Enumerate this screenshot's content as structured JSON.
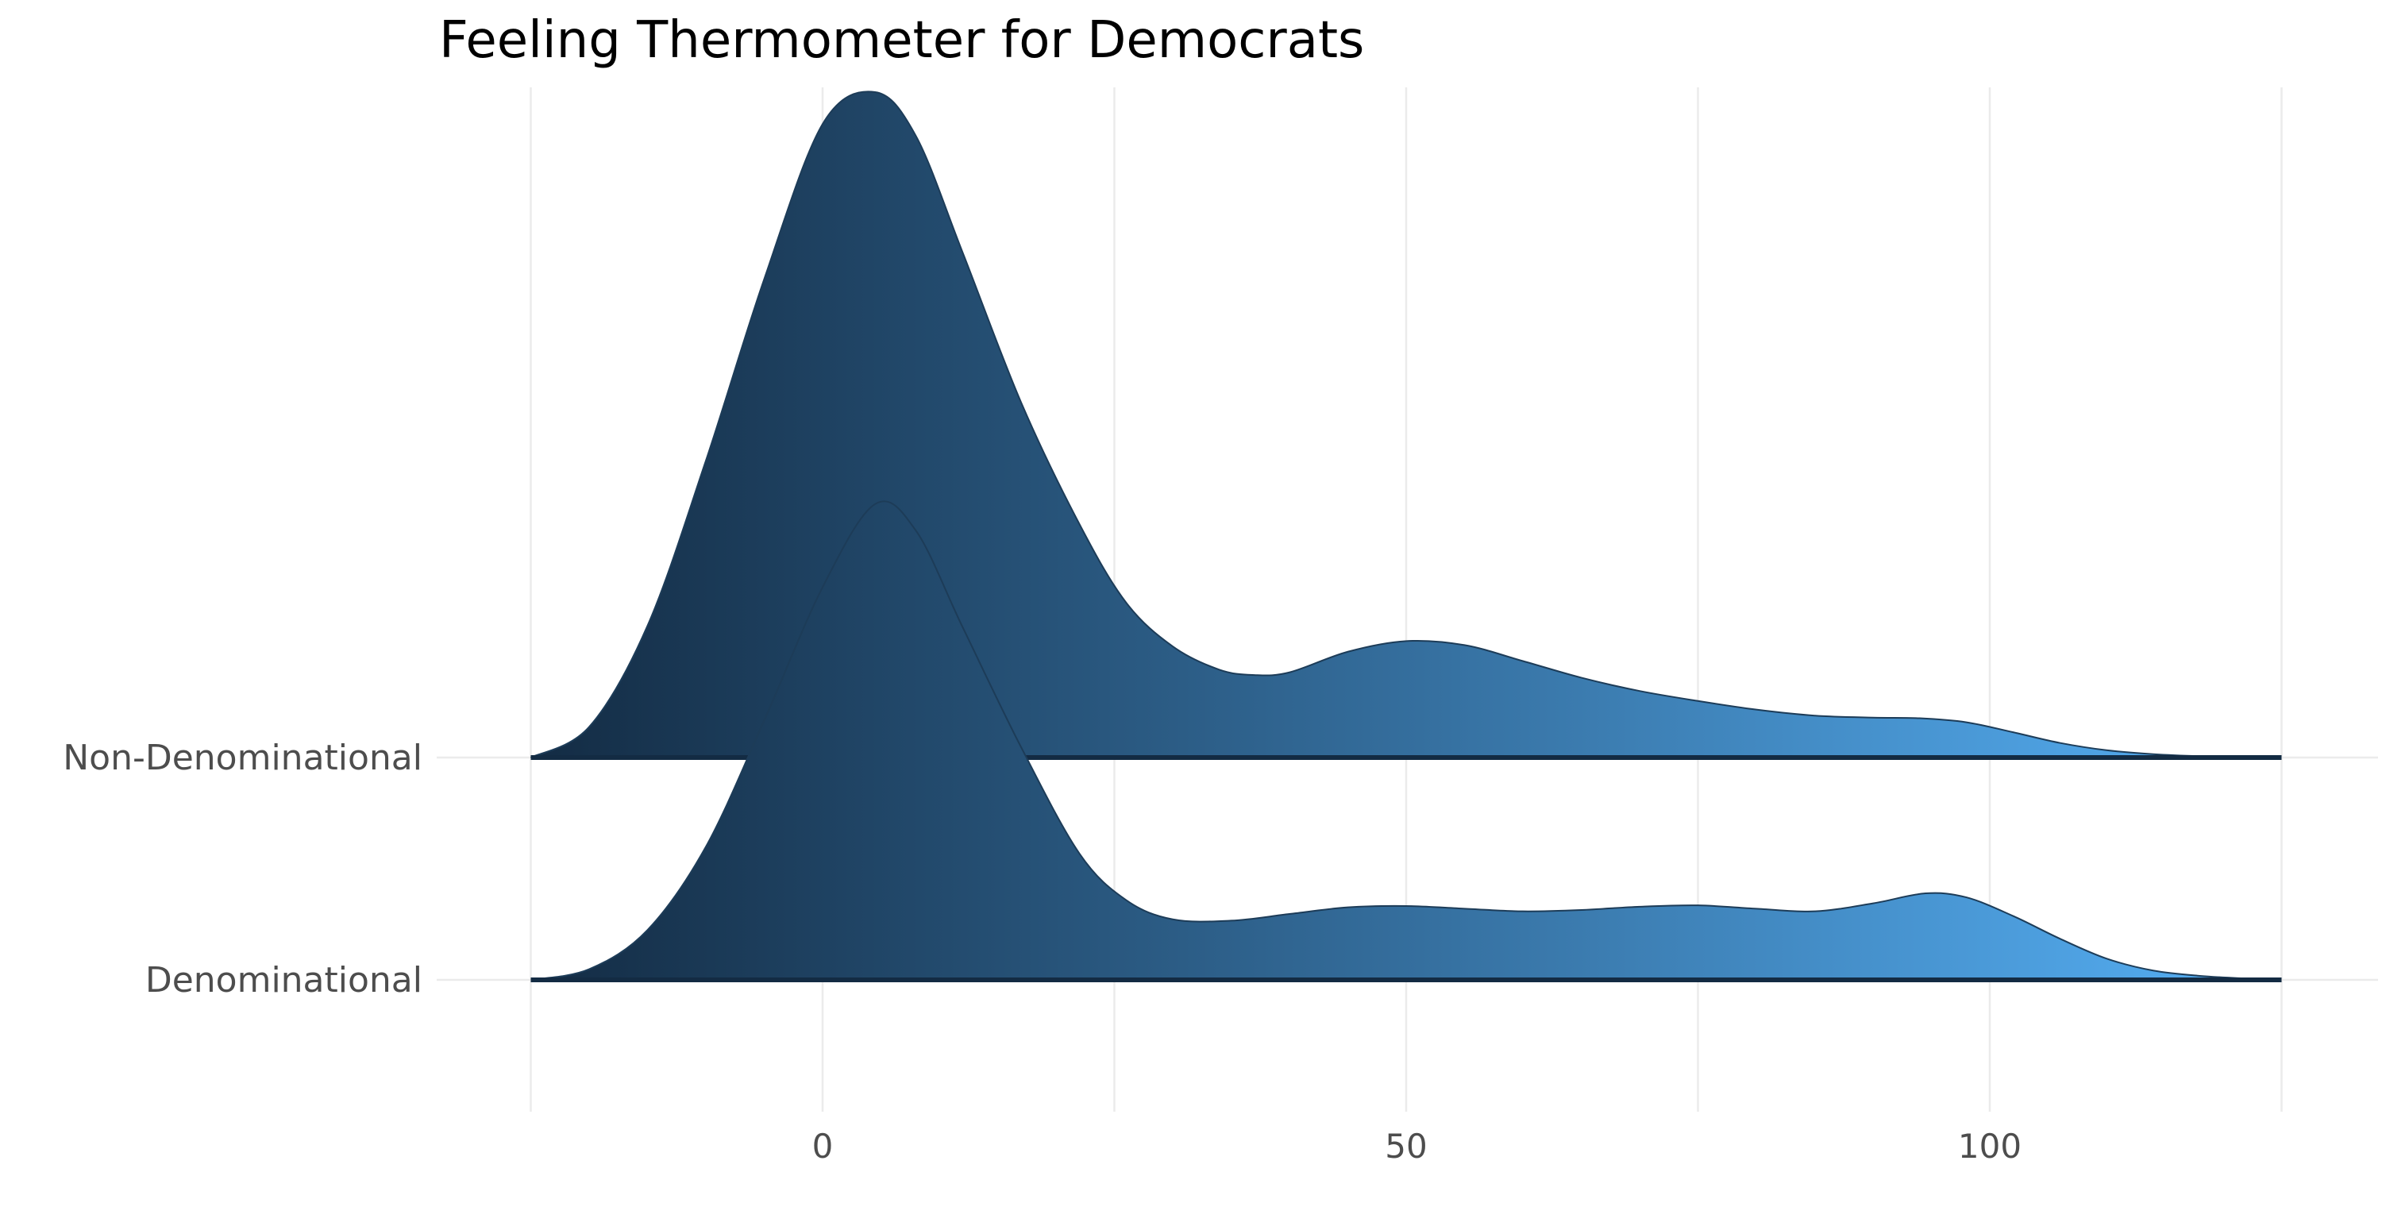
{
  "chart_data": {
    "type": "ridgeline",
    "title": "Feeling Thermometer for Democrats",
    "xlabel": "",
    "ylabel": "",
    "xlim": [
      -25,
      125
    ],
    "x_ticks": [
      0,
      50,
      100
    ],
    "x_tick_labels": [
      "0",
      "50",
      "100"
    ],
    "grid": true,
    "fill_gradient": [
      "#132B43",
      "#56B1F7"
    ],
    "categories": [
      "Denominational",
      "Non-Denominational"
    ],
    "series": [
      {
        "category": "Denominational",
        "x": [
          -25,
          -20,
          -15,
          -10,
          -5,
          0,
          4.5,
          8,
          12,
          17,
          22,
          26,
          30,
          35,
          40,
          45,
          50,
          55,
          60,
          65,
          70,
          75,
          80,
          85,
          90,
          94.5,
          98,
          102,
          106,
          110,
          114,
          118,
          122,
          125
        ],
        "density": [
          0.0,
          0.016,
          0.075,
          0.2,
          0.39,
          0.59,
          0.715,
          0.675,
          0.53,
          0.35,
          0.19,
          0.12,
          0.091,
          0.089,
          0.099,
          0.109,
          0.111,
          0.107,
          0.103,
          0.105,
          0.11,
          0.112,
          0.107,
          0.103,
          0.115,
          0.13,
          0.124,
          0.096,
          0.062,
          0.032,
          0.014,
          0.006,
          0.002,
          0.0
        ]
      },
      {
        "category": "Non-Denominational",
        "x": [
          -25,
          -20,
          -15,
          -10,
          -5,
          0,
          4.5,
          8,
          12,
          17,
          22,
          26,
          30,
          34,
          37,
          40,
          45,
          50,
          55,
          60,
          65,
          70,
          75,
          80,
          85,
          90,
          94,
          98,
          102,
          106,
          110,
          114,
          118,
          122,
          125
        ],
        "density": [
          0.0,
          0.046,
          0.198,
          0.446,
          0.719,
          0.952,
          1.0,
          0.934,
          0.759,
          0.534,
          0.351,
          0.233,
          0.167,
          0.132,
          0.124,
          0.128,
          0.159,
          0.175,
          0.169,
          0.145,
          0.12,
          0.1,
          0.085,
          0.072,
          0.063,
          0.06,
          0.059,
          0.053,
          0.038,
          0.022,
          0.011,
          0.005,
          0.002,
          0.001,
          0.0
        ]
      }
    ]
  }
}
